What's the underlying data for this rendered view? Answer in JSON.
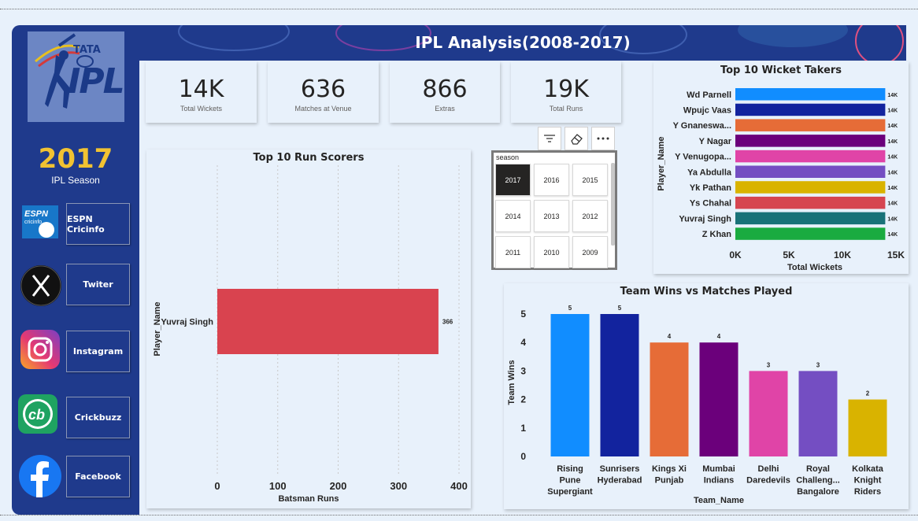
{
  "header": {
    "title": "IPL Analysis(2008-2017)"
  },
  "sidebar": {
    "logo_text_top": "TATA",
    "logo_text_main": "IPL",
    "season_value": "2017",
    "season_label": "IPL Season",
    "links": [
      {
        "label": "ESPN Cricinfo",
        "icon": "espn-cricinfo-icon",
        "icon_text": "ESPN cricinfo"
      },
      {
        "label": "Twiter",
        "icon": "x-icon"
      },
      {
        "label": "Instagram",
        "icon": "instagram-icon"
      },
      {
        "label": "Crickbuzz",
        "icon": "cricbuzz-icon",
        "icon_text": "cb"
      },
      {
        "label": "Facebook",
        "icon": "facebook-icon"
      }
    ]
  },
  "kpis": [
    {
      "value": "14K",
      "label": "Total Wickets"
    },
    {
      "value": "636",
      "label": "Matches at Venue"
    },
    {
      "value": "866",
      "label": "Extras"
    },
    {
      "value": "19K",
      "label": "Total Runs"
    }
  ],
  "toolbar": {
    "icons": [
      "filter-icon",
      "eraser-icon",
      "more-options-icon"
    ]
  },
  "slicer": {
    "title": "season",
    "items": [
      "2017",
      "2016",
      "2015",
      "2014",
      "2013",
      "2012",
      "2011",
      "2010",
      "2009"
    ],
    "selected": "2017"
  },
  "run_scorers": {
    "chart_data": {
      "type": "bar",
      "orientation": "horizontal",
      "title": "Top 10 Run Scorers",
      "xlabel": "Batsman Runs",
      "ylabel": "Player_Name",
      "categories": [
        "Yuvraj Singh"
      ],
      "values": [
        366
      ],
      "data_labels": [
        "366"
      ],
      "xlim": [
        0,
        400
      ],
      "xticks": [
        "0",
        "100",
        "200",
        "300",
        "400"
      ],
      "bar_color": "#d9434f"
    }
  },
  "wicket_takers": {
    "chart_data": {
      "type": "bar",
      "orientation": "horizontal",
      "title": "Top 10 Wicket Takers",
      "xlabel": "Total Wickets",
      "ylabel": "Player_Name",
      "categories": [
        "Wd Parnell",
        "Wpujc Vaas",
        "Y Gnaneswa...",
        "Y Nagar",
        "Y Venugopa...",
        "Ya Abdulla",
        "Yk Pathan",
        "Ys Chahal",
        "Yuvraj Singh",
        "Z Khan"
      ],
      "values": [
        14000,
        14000,
        14000,
        14000,
        14000,
        14000,
        14000,
        14000,
        14000,
        14000
      ],
      "data_labels": [
        "14K",
        "14K",
        "14K",
        "14K",
        "14K",
        "14K",
        "14K",
        "14K",
        "14K",
        "14K"
      ],
      "xlim": [
        0,
        15000
      ],
      "xticks": [
        "0K",
        "5K",
        "10K",
        "15K"
      ],
      "colors": [
        "#118dff",
        "#12239e",
        "#e66c37",
        "#6b007b",
        "#e044a7",
        "#744ec2",
        "#d9b300",
        "#d64550",
        "#197278",
        "#1aab40"
      ]
    }
  },
  "team_wins": {
    "chart_data": {
      "type": "bar",
      "title": "Team Wins vs Matches Played",
      "xlabel": "Team_Name",
      "ylabel": "Team Wins",
      "categories": [
        [
          "Rising",
          "Pune",
          "Supergiant"
        ],
        [
          "Sunrisers",
          "Hyderabad"
        ],
        [
          "Kings Xi",
          "Punjab"
        ],
        [
          "Mumbai",
          "Indians"
        ],
        [
          "Delhi",
          "Daredevils"
        ],
        [
          "Royal",
          "Challeng...",
          "Bangalore"
        ],
        [
          "Kolkata",
          "Knight",
          "Riders"
        ]
      ],
      "values": [
        5,
        5,
        4,
        4,
        3,
        3,
        2
      ],
      "data_labels": [
        "5",
        "5",
        "4",
        "4",
        "3",
        "3",
        "2"
      ],
      "ylim": [
        0,
        5
      ],
      "yticks": [
        "0",
        "1",
        "2",
        "3",
        "4",
        "5"
      ],
      "colors": [
        "#118dff",
        "#12239e",
        "#e66c37",
        "#6b007b",
        "#e044a7",
        "#744ec2",
        "#d9b300"
      ]
    }
  }
}
